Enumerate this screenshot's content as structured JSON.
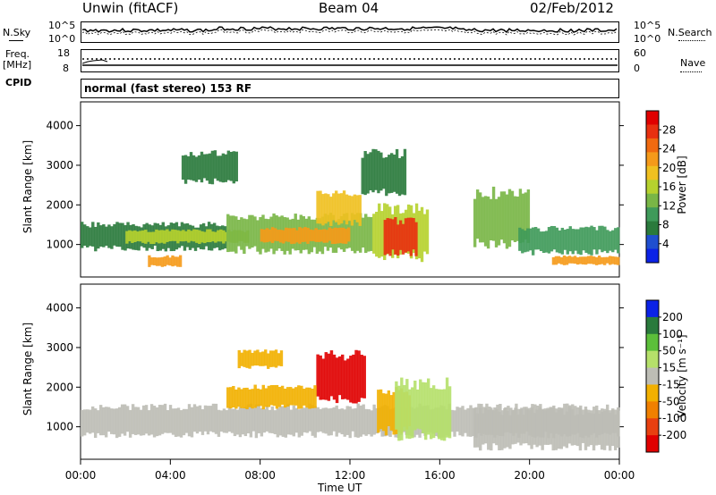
{
  "header": {
    "station": "Unwin (fitACF)",
    "beam": "Beam 04",
    "date": "02/Feb/2012"
  },
  "noise_panel": {
    "left_label": "N.Sky",
    "left_ticks": [
      "10^5",
      "10^0"
    ],
    "right_ticks": [
      "10^5",
      "10^0"
    ],
    "right_label": "N.Search"
  },
  "freq_panel": {
    "left_label_1": "Freq.",
    "left_label_2": "[MHz]",
    "left_ticks": [
      "18",
      "8"
    ],
    "right_ticks": [
      "60",
      "0"
    ],
    "right_label": "Nave"
  },
  "cpid": {
    "label": "CPID",
    "value": "normal (fast stereo) 153 RF"
  },
  "colors": {
    "power_scale": [
      "#0b22e6",
      "#1f4fd0",
      "#2a7a3c",
      "#3f9a5a",
      "#79b646",
      "#b6d12e",
      "#f0c020",
      "#f59a1a",
      "#f06a10",
      "#e83010",
      "#e00000"
    ],
    "velocity_scale": [
      "#0b22e6",
      "#2a7a3c",
      "#5cbf3a",
      "#b5e06a",
      "#bdbdb5",
      "#f2b000",
      "#f08000",
      "#e84010",
      "#e00000"
    ]
  },
  "chart_data": [
    {
      "type": "heatmap",
      "title": "",
      "ylabel": "Slant Range [km]",
      "xlabel": "",
      "ylim": [
        180,
        4600
      ],
      "xlim": [
        0,
        24
      ],
      "yticks": [
        "1000",
        "2000",
        "3000",
        "4000"
      ],
      "colorbar": {
        "label": "Power [dB]",
        "ticks": [
          "4",
          "8",
          "12",
          "16",
          "20",
          "24",
          "28"
        ],
        "range": [
          0,
          32
        ]
      },
      "regions": [
        {
          "t0": 0.0,
          "t1": 6.5,
          "r0": 900,
          "r1": 1500,
          "level": 8
        },
        {
          "t0": 2.0,
          "t1": 7.5,
          "r0": 1050,
          "r1": 1350,
          "level": 16
        },
        {
          "t0": 6.5,
          "t1": 13.0,
          "r0": 850,
          "r1": 1700,
          "level": 14
        },
        {
          "t0": 8.0,
          "t1": 12.0,
          "r0": 1050,
          "r1": 1400,
          "level": 22
        },
        {
          "t0": 10.5,
          "t1": 12.5,
          "r0": 1550,
          "r1": 2300,
          "level": 18
        },
        {
          "t0": 13.0,
          "t1": 15.5,
          "r0": 700,
          "r1": 1900,
          "level": 16
        },
        {
          "t0": 13.5,
          "t1": 15.0,
          "r0": 800,
          "r1": 1600,
          "level": 28
        },
        {
          "t0": 17.5,
          "t1": 20.0,
          "r0": 1000,
          "r1": 2300,
          "level": 14
        },
        {
          "t0": 19.5,
          "t1": 24.0,
          "r0": 800,
          "r1": 1400,
          "level": 10
        },
        {
          "t0": 21.0,
          "t1": 24.0,
          "r0": 500,
          "r1": 700,
          "level": 22
        },
        {
          "t0": 3.0,
          "t1": 4.5,
          "r0": 450,
          "r1": 700,
          "level": 22
        },
        {
          "t0": 12.5,
          "t1": 14.5,
          "r0": 2300,
          "r1": 3300,
          "level": 6
        },
        {
          "t0": 4.5,
          "t1": 7.0,
          "r0": 2600,
          "r1": 3300,
          "level": 6
        }
      ]
    },
    {
      "type": "heatmap",
      "title": "",
      "ylabel": "Slant Range [km]",
      "xlabel": "Time UT",
      "ylim": [
        180,
        4600
      ],
      "xlim": [
        0,
        24
      ],
      "yticks": [
        "1000",
        "2000",
        "3000",
        "4000"
      ],
      "xticks": [
        "00:00",
        "04:00",
        "08:00",
        "12:00",
        "16:00",
        "20:00",
        "00:00"
      ],
      "colorbar": {
        "label": "Velocity [m s⁻¹]",
        "ticks": [
          "200",
          "100",
          "50",
          "15",
          "-15",
          "-50",
          "-100",
          "-200"
        ],
        "range": [
          -250,
          250
        ]
      },
      "regions": [
        {
          "t0": 0.0,
          "t1": 24.0,
          "r0": 800,
          "r1": 1500,
          "velocity": 0
        },
        {
          "t0": 10.5,
          "t1": 12.7,
          "r0": 1700,
          "r1": 2800,
          "velocity": -220
        },
        {
          "t0": 13.2,
          "t1": 14.7,
          "r0": 900,
          "r1": 1900,
          "velocity": -60
        },
        {
          "t0": 14.0,
          "t1": 16.5,
          "r0": 800,
          "r1": 2100,
          "velocity": 40
        },
        {
          "t0": 6.5,
          "t1": 10.5,
          "r0": 1500,
          "r1": 2000,
          "velocity": -50
        },
        {
          "t0": 7.0,
          "t1": 9.0,
          "r0": 2500,
          "r1": 2900,
          "velocity": -40
        },
        {
          "t0": 17.5,
          "t1": 24.0,
          "r0": 500,
          "r1": 1400,
          "velocity": 0
        }
      ]
    }
  ],
  "xaxis_label": "Time UT"
}
